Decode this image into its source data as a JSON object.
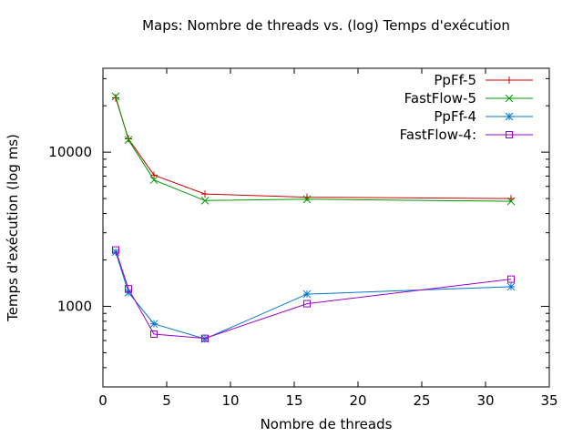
{
  "chart_data": {
    "type": "line",
    "title": "Maps: Nombre de threads vs. (log) Temps d'exécution",
    "xlabel": "Nombre de threads",
    "ylabel": "Temps d'exécution (log ms)",
    "xlim": [
      0,
      35
    ],
    "ylim": [
      300,
      35000
    ],
    "yscale": "log",
    "x_ticks": [
      0,
      5,
      10,
      15,
      20,
      25,
      30,
      35
    ],
    "y_ticks": [
      1000,
      10000
    ],
    "grid": false,
    "legend_position": "top-right",
    "series": [
      {
        "name": "PpFf-5",
        "color": "#cc0000",
        "marker": "plus",
        "x": [
          1,
          2,
          4,
          8,
          16,
          32
        ],
        "y": [
          22500,
          12200,
          7100,
          5350,
          5100,
          5000
        ]
      },
      {
        "name": "FastFlow-5",
        "color": "#009900",
        "marker": "x",
        "x": [
          1,
          2,
          4,
          8,
          16,
          32
        ],
        "y": [
          23000,
          12000,
          6600,
          4850,
          4950,
          4800
        ]
      },
      {
        "name": "PpFf-4",
        "color": "#0077cc",
        "marker": "star",
        "x": [
          1,
          2,
          4,
          8,
          16,
          32
        ],
        "y": [
          2250,
          1230,
          770,
          615,
          1200,
          1340
        ]
      },
      {
        "name": "FastFlow-4:",
        "color": "#9900cc",
        "marker": "square",
        "x": [
          1,
          2,
          4,
          8,
          16,
          32
        ],
        "y": [
          2320,
          1300,
          660,
          620,
          1040,
          1500
        ]
      }
    ]
  }
}
